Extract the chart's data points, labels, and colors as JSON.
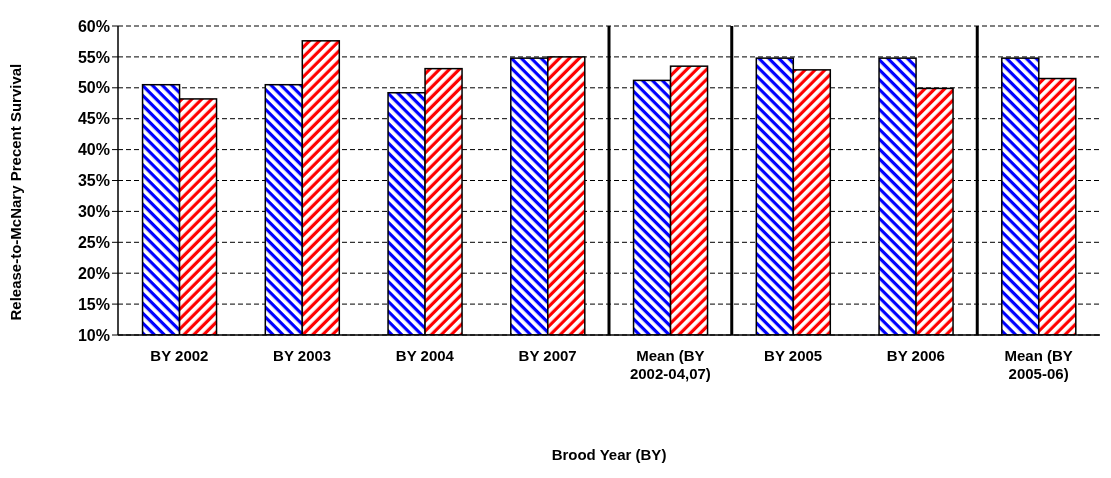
{
  "chart_data": {
    "type": "bar",
    "xlabel": "Brood Year (BY)",
    "ylabel": "Release-to-McNary Precent Survival",
    "categories": [
      "BY 2002",
      "BY 2003",
      "BY 2004",
      "BY 2007",
      "Mean (BY 2002-04,07)",
      "BY 2005",
      "BY 2006",
      "Mean (BY 2005-06)"
    ],
    "series": [
      {
        "color": "#0000ff",
        "values": [
          50.5,
          50.5,
          49.2,
          54.8,
          51.2,
          54.8,
          54.8,
          54.8
        ]
      },
      {
        "color": "#ff0000",
        "values": [
          48.2,
          57.6,
          53.1,
          55.0,
          53.5,
          52.9,
          49.9,
          51.5
        ]
      }
    ],
    "ylim": [
      10,
      60
    ],
    "yticks": [
      {
        "value": 10,
        "label": "10%"
      },
      {
        "value": 15,
        "label": "15%"
      },
      {
        "value": 20,
        "label": "20%"
      },
      {
        "value": 25,
        "label": "25%"
      },
      {
        "value": 30,
        "label": "30%"
      },
      {
        "value": 35,
        "label": "35%"
      },
      {
        "value": 40,
        "label": "40%"
      },
      {
        "value": 45,
        "label": "45%"
      },
      {
        "value": 50,
        "label": "50%"
      },
      {
        "value": 55,
        "label": "55%"
      },
      {
        "value": 60,
        "label": "60%"
      }
    ],
    "grid": "y",
    "legend": false
  }
}
